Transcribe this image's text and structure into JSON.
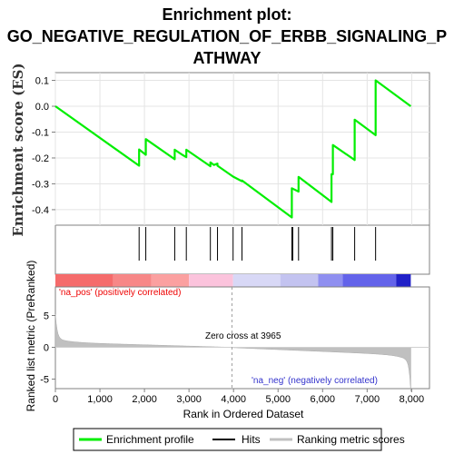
{
  "title_lines": [
    "Enrichment plot:",
    "GO_NEGATIVE_REGULATION_OF_ERBB_SIGNALING_P",
    "ATHWAY"
  ],
  "chart_data": {
    "type": "line",
    "title": "Enrichment plot: GO_NEGATIVE_REGULATION_OF_ERBB_SIGNALING_PATHWAY",
    "enrichment": {
      "ylabel": "Enrichment score (ES)",
      "ylim": [
        -0.46,
        0.13
      ],
      "yticks": [
        0.1,
        0.0,
        -0.1,
        -0.2,
        -0.3,
        -0.4
      ],
      "ytick_labels": [
        "0.1",
        "0.0",
        "-0.1",
        "-0.2",
        "-0.3",
        "-0.4"
      ],
      "series_name": "Enrichment profile",
      "color": "#00ee00",
      "points": [
        [
          0,
          0.0
        ],
        [
          1880,
          -0.23
        ],
        [
          1880,
          -0.167
        ],
        [
          2030,
          -0.188
        ],
        [
          2030,
          -0.127
        ],
        [
          2680,
          -0.205
        ],
        [
          2680,
          -0.168
        ],
        [
          2850,
          -0.188
        ],
        [
          2940,
          -0.197
        ],
        [
          2940,
          -0.168
        ],
        [
          3480,
          -0.232
        ],
        [
          3480,
          -0.217
        ],
        [
          3560,
          -0.227
        ],
        [
          3640,
          -0.222
        ],
        [
          3640,
          -0.23
        ],
        [
          3990,
          -0.272
        ],
        [
          4190,
          -0.29
        ],
        [
          4190,
          -0.287
        ],
        [
          5310,
          -0.43
        ],
        [
          5310,
          -0.317
        ],
        [
          5460,
          -0.33
        ],
        [
          5460,
          -0.273
        ],
        [
          6200,
          -0.37
        ],
        [
          6200,
          -0.263
        ],
        [
          6230,
          -0.263
        ],
        [
          6230,
          -0.15
        ],
        [
          6720,
          -0.208
        ],
        [
          6720,
          -0.052
        ],
        [
          7190,
          -0.112
        ],
        [
          7190,
          0.1
        ],
        [
          7980,
          0.0
        ]
      ]
    },
    "hits": {
      "series_name": "Hits",
      "positions": [
        1880,
        2030,
        2680,
        2940,
        3480,
        3640,
        3990,
        4190,
        5310,
        5330,
        5460,
        6200,
        6230,
        6720,
        7190
      ]
    },
    "ranked_metric": {
      "ylabel": "Ranked list metric (PreRanked)",
      "ylim": [
        -6.5,
        9.5
      ],
      "yticks": [
        5,
        0,
        -5
      ],
      "ytick_labels": [
        "5",
        "0",
        "-5"
      ],
      "series_name": "Ranking metric scores",
      "color": "#c0c0c0",
      "zero_cross": 3965,
      "zero_cross_label": "Zero cross at 3965",
      "pos_label": "'na_pos' (positively correlated)",
      "neg_label": "'na_neg' (negatively correlated)",
      "pos_color": "#ee0000",
      "neg_color": "#0000cc"
    },
    "xlabel": "Rank in Ordered Dataset",
    "xlim": [
      0,
      8400
    ],
    "xticks": [
      0,
      1000,
      2000,
      3000,
      4000,
      5000,
      6000,
      7000,
      8000
    ],
    "xtick_labels": [
      "0",
      "1,000",
      "2,000",
      "3,000",
      "4,000",
      "5,000",
      "6,000",
      "7,000",
      "8,000"
    ],
    "n_genes": 7980,
    "heat_segments": [
      {
        "end": 1300,
        "color": "#f56b6b"
      },
      {
        "end": 2150,
        "color": "#f78787"
      },
      {
        "end": 3000,
        "color": "#fba0a0"
      },
      {
        "end": 3990,
        "color": "#fbc3dc"
      },
      {
        "end": 5050,
        "color": "#d8d8f6"
      },
      {
        "end": 5900,
        "color": "#c3c3f0"
      },
      {
        "end": 6450,
        "color": "#8f8ff0"
      },
      {
        "end": 7650,
        "color": "#6363ea"
      },
      {
        "end": 7980,
        "color": "#2020c8"
      }
    ],
    "legend": [
      {
        "label": "Enrichment profile",
        "color": "#00ee00"
      },
      {
        "label": "Hits",
        "color": "#000000"
      },
      {
        "label": "Ranking metric scores",
        "color": "#c0c0c0"
      }
    ]
  }
}
